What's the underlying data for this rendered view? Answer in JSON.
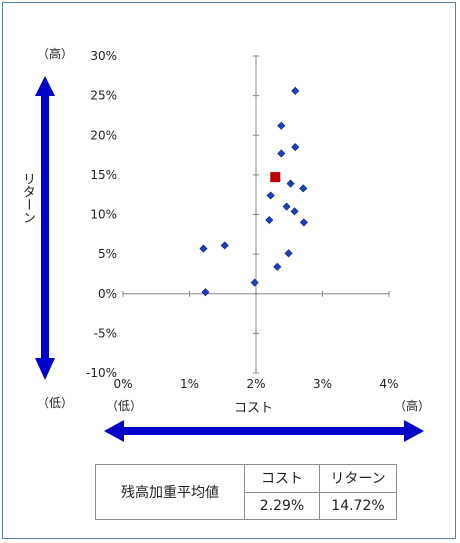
{
  "chart_data": {
    "type": "scatter",
    "xlabel": "コスト",
    "ylabel": "リターン",
    "xlim": [
      0,
      0.04
    ],
    "ylim": [
      -0.1,
      0.3
    ],
    "x_ticks": [
      "0%",
      "1%",
      "2%",
      "3%",
      "4%"
    ],
    "y_ticks": [
      "30%",
      "25%",
      "20%",
      "15%",
      "10%",
      "5%",
      "0%",
      "-5%",
      "-10%"
    ],
    "y_high_label": "（高）",
    "y_low_label": "（低）",
    "x_low_label": "（低）",
    "x_high_label": "（高）",
    "point_color": "#1f3fbf",
    "highlight_color": "#c00000",
    "arrow_color": "#0000c8",
    "points": [
      {
        "x": 0.0259,
        "y": 0.256
      },
      {
        "x": 0.0238,
        "y": 0.212
      },
      {
        "x": 0.0238,
        "y": 0.177
      },
      {
        "x": 0.0259,
        "y": 0.185
      },
      {
        "x": 0.0252,
        "y": 0.139
      },
      {
        "x": 0.0271,
        "y": 0.133
      },
      {
        "x": 0.0222,
        "y": 0.124
      },
      {
        "x": 0.0246,
        "y": 0.11
      },
      {
        "x": 0.0258,
        "y": 0.104
      },
      {
        "x": 0.022,
        "y": 0.093
      },
      {
        "x": 0.0272,
        "y": 0.09
      },
      {
        "x": 0.0121,
        "y": 0.057
      },
      {
        "x": 0.0153,
        "y": 0.061
      },
      {
        "x": 0.0249,
        "y": 0.051
      },
      {
        "x": 0.0232,
        "y": 0.034
      },
      {
        "x": 0.0198,
        "y": 0.014
      },
      {
        "x": 0.0124,
        "y": 0.002
      }
    ],
    "highlight": {
      "x": 0.0229,
      "y": 0.1472
    }
  },
  "summary_table": {
    "row_label": "残高加重平均値",
    "cost_header": "コスト",
    "return_header": "リターン",
    "cost_value": "2.29%",
    "return_value": "14.72%"
  }
}
